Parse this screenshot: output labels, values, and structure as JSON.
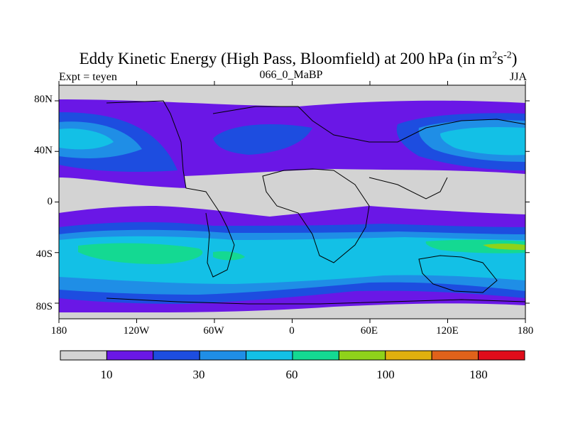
{
  "title": {
    "main": "Eddy Kinetic Energy (High Pass, Bloomfield) at 200 hPa (in m",
    "sup1": "2",
    "mid": "s",
    "sup2": "-2",
    "end": ")"
  },
  "subtitle_left": "Expt = teyen",
  "subtitle_center": "066_0_MaBP",
  "subtitle_right": "JJA",
  "lat_labels": [
    "80N",
    "40N",
    "0",
    "40S",
    "80S"
  ],
  "lon_labels": [
    "180",
    "120W",
    "60W",
    "0",
    "60E",
    "120E",
    "180"
  ],
  "colorbar": {
    "colors": [
      "#d3d3d3",
      "#6a17e6",
      "#1d4de0",
      "#1f8ee6",
      "#13c0e6",
      "#14d992",
      "#8fd21a",
      "#e0b00e",
      "#e0621a",
      "#e00c1a"
    ],
    "labels": [
      "10",
      "30",
      "60",
      "100",
      "180"
    ]
  }
}
